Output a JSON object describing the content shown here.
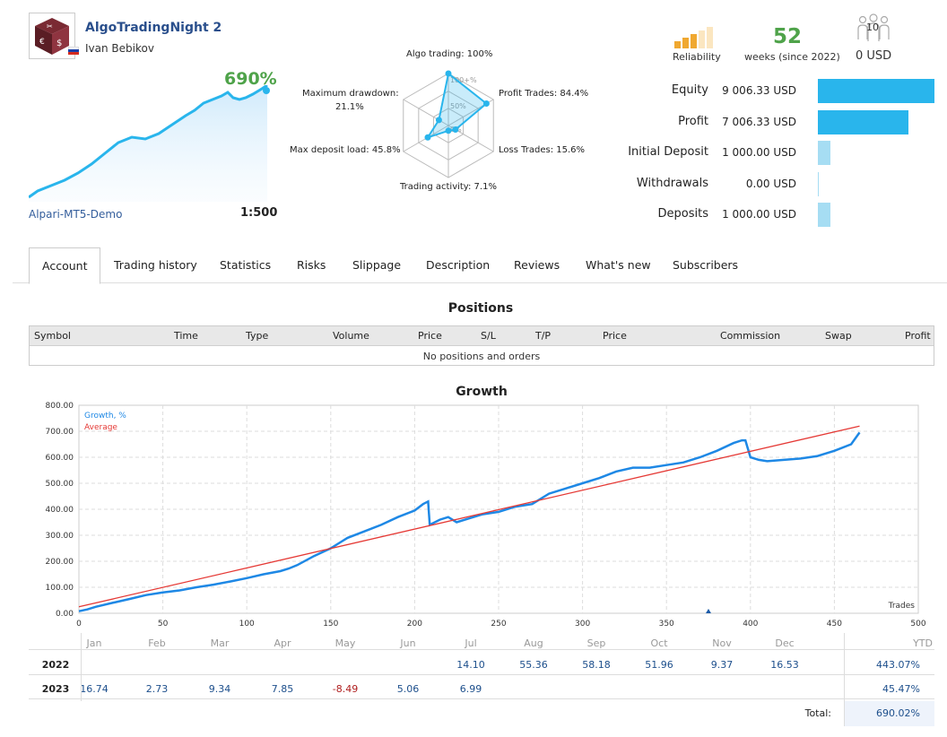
{
  "header": {
    "title": "AlgoTradingNight 2",
    "owner": "Ivan Bebikov",
    "gain_percent": "690%",
    "broker": "Alpari-MT5-Demo",
    "leverage": "1:500"
  },
  "radar": {
    "algo_trading": "Algo trading: 100%",
    "profit_trades": "Profit Trades: 84.4%",
    "loss_trades": "Loss Trades: 15.6%",
    "trading_activity": "Trading activity: 7.1%",
    "max_deposit_load": "Max deposit load: 45.8%",
    "max_drawdown_line1": "Maximum drawdown:",
    "max_drawdown_line2": "21.1%",
    "ring_100": "100+%",
    "ring_50": "50%",
    "ring_0": "0%",
    "values": [
      1.0,
      0.844,
      0.156,
      0.071,
      0.458,
      0.211
    ]
  },
  "reliability": {
    "label": "Reliability",
    "level": 3,
    "of": 5
  },
  "weeks": {
    "number": "52",
    "text": "weeks (since 2022)"
  },
  "subscribers": {
    "count": "10",
    "amount": "0 USD"
  },
  "stats": [
    {
      "label": "Equity",
      "value": "9 006.33 USD",
      "ratio": 1.0
    },
    {
      "label": "Profit",
      "value": "7 006.33 USD",
      "ratio": 0.778
    },
    {
      "label": "Initial Deposit",
      "value": "1 000.00 USD",
      "ratio": 0.111
    },
    {
      "label": "Withdrawals",
      "value": "0.00 USD",
      "ratio": 0.0
    },
    {
      "label": "Deposits",
      "value": "1 000.00 USD",
      "ratio": 0.111
    }
  ],
  "tabs": [
    "Account",
    "Trading history",
    "Statistics",
    "Risks",
    "Slippage",
    "Description",
    "Reviews",
    "What's new",
    "Subscribers"
  ],
  "positions": {
    "title": "Positions",
    "columns": [
      "Symbol",
      "Time",
      "Type",
      "Volume",
      "Price",
      "S/L",
      "T/P",
      "Price",
      "Commission",
      "Swap",
      "Profit"
    ],
    "empty_text": "No positions and orders"
  },
  "colors": {
    "growth": "#1e88e5",
    "average": "#e53935",
    "bar": "#29b5ec",
    "bar_light": "#a6ddf3",
    "green": "#4fa34a"
  },
  "chart_data": {
    "type": "line",
    "title": "Growth",
    "xlabel": "Trades",
    "xlim": [
      0,
      500
    ],
    "ylim": [
      0,
      800
    ],
    "x_ticks": [
      "0",
      "50",
      "100",
      "150",
      "200",
      "250",
      "300",
      "350",
      "400",
      "450",
      "500"
    ],
    "y_ticks": [
      "0.00",
      "100.00",
      "200.00",
      "300.00",
      "400.00",
      "500.00",
      "600.00",
      "700.00",
      "800.00"
    ],
    "grid": true,
    "legend_position": "top-left",
    "series": [
      {
        "name": "Growth, %",
        "x": [
          0,
          5,
          10,
          20,
          30,
          40,
          50,
          60,
          70,
          80,
          90,
          100,
          110,
          120,
          125,
          130,
          140,
          150,
          160,
          170,
          180,
          190,
          200,
          205,
          208,
          209,
          215,
          220,
          225,
          230,
          240,
          250,
          260,
          270,
          280,
          290,
          300,
          310,
          320,
          330,
          340,
          350,
          360,
          370,
          380,
          390,
          395,
          397,
          400,
          405,
          410,
          420,
          430,
          440,
          450,
          460,
          465
        ],
        "y": [
          8,
          15,
          25,
          40,
          55,
          70,
          80,
          88,
          100,
          110,
          122,
          135,
          150,
          162,
          172,
          185,
          220,
          250,
          290,
          315,
          340,
          370,
          395,
          420,
          430,
          340,
          360,
          370,
          350,
          360,
          380,
          390,
          410,
          420,
          460,
          480,
          500,
          520,
          545,
          560,
          560,
          570,
          580,
          600,
          625,
          655,
          665,
          665,
          600,
          590,
          585,
          590,
          595,
          605,
          625,
          650,
          695
        ]
      },
      {
        "name": "Average",
        "x": [
          0,
          465
        ],
        "y": [
          25,
          720
        ]
      }
    ]
  },
  "monthly": {
    "months": [
      "Jan",
      "Feb",
      "Mar",
      "Apr",
      "May",
      "Jun",
      "Jul",
      "Aug",
      "Sep",
      "Oct",
      "Nov",
      "Dec",
      "YTD"
    ],
    "rows": [
      {
        "year": "2022",
        "values": [
          "",
          "",
          "",
          "",
          "",
          "",
          "14.10",
          "55.36",
          "58.18",
          "51.96",
          "9.37",
          "16.53"
        ],
        "ytd": "443.07%"
      },
      {
        "year": "2023",
        "values": [
          "16.74",
          "2.73",
          "9.34",
          "7.85",
          "-8.49",
          "5.06",
          "6.99",
          "",
          "",
          "",
          "",
          ""
        ],
        "ytd": "45.47%"
      }
    ],
    "total_label": "Total:",
    "total_value": "690.02%"
  }
}
